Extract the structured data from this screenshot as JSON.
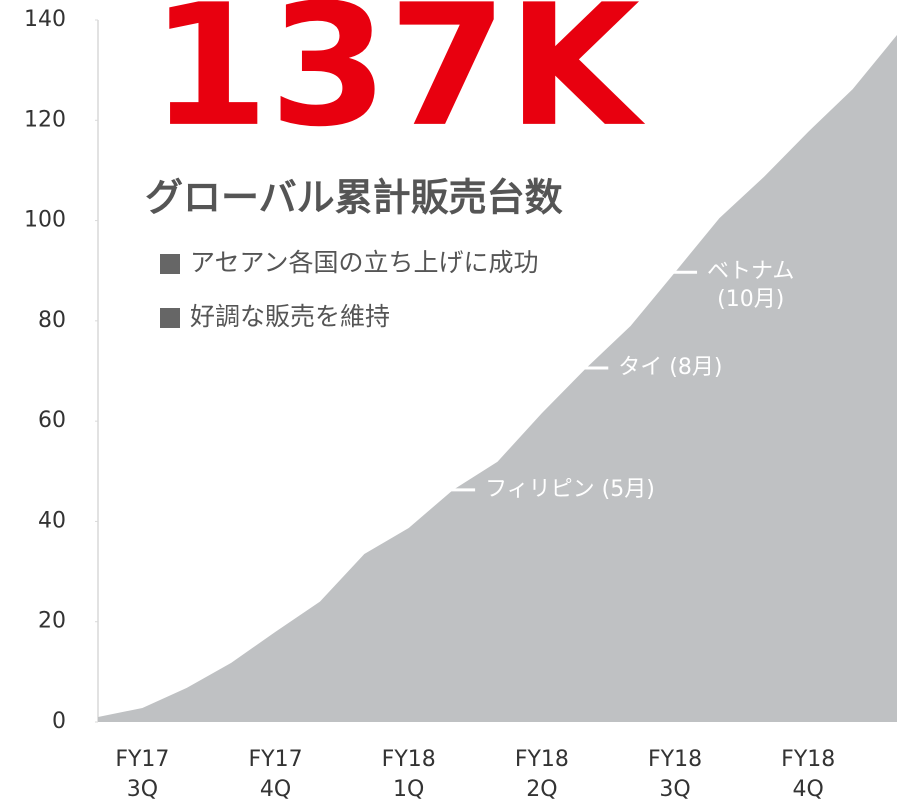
{
  "chart_data": {
    "type": "area",
    "title": "137K",
    "subtitle": "グローバル累計販売台数",
    "bullets": [
      "アセアン各国の立ち上げに成功",
      "好調な販売を維持"
    ],
    "categories": [
      null,
      "FY17\n3Q",
      null,
      null,
      "FY17\n4Q",
      null,
      null,
      "FY18\n1Q",
      null,
      null,
      "FY18\n2Q",
      null,
      null,
      "FY18\n3Q",
      null,
      null,
      "FY18\n4Q",
      null,
      null
    ],
    "values": [
      1,
      2.8,
      6.8,
      11.8,
      18,
      24,
      33.5,
      38.7,
      46.3,
      51.9,
      61.6,
      70.6,
      79,
      89.7,
      100.5,
      108.7,
      117.7,
      126.2,
      137
    ],
    "color": "#bfc1c3",
    "title_color": "#e8000f",
    "ylim": [
      0,
      140
    ],
    "yticks": [
      0,
      20,
      40,
      60,
      80,
      100,
      120,
      140
    ],
    "annotations": [
      {
        "text": "フィリピン (5月)",
        "index": 8
      },
      {
        "text": "タイ (8月)",
        "index": 11
      },
      {
        "text": "ベトナム\n(10月)",
        "index": 13
      }
    ]
  }
}
